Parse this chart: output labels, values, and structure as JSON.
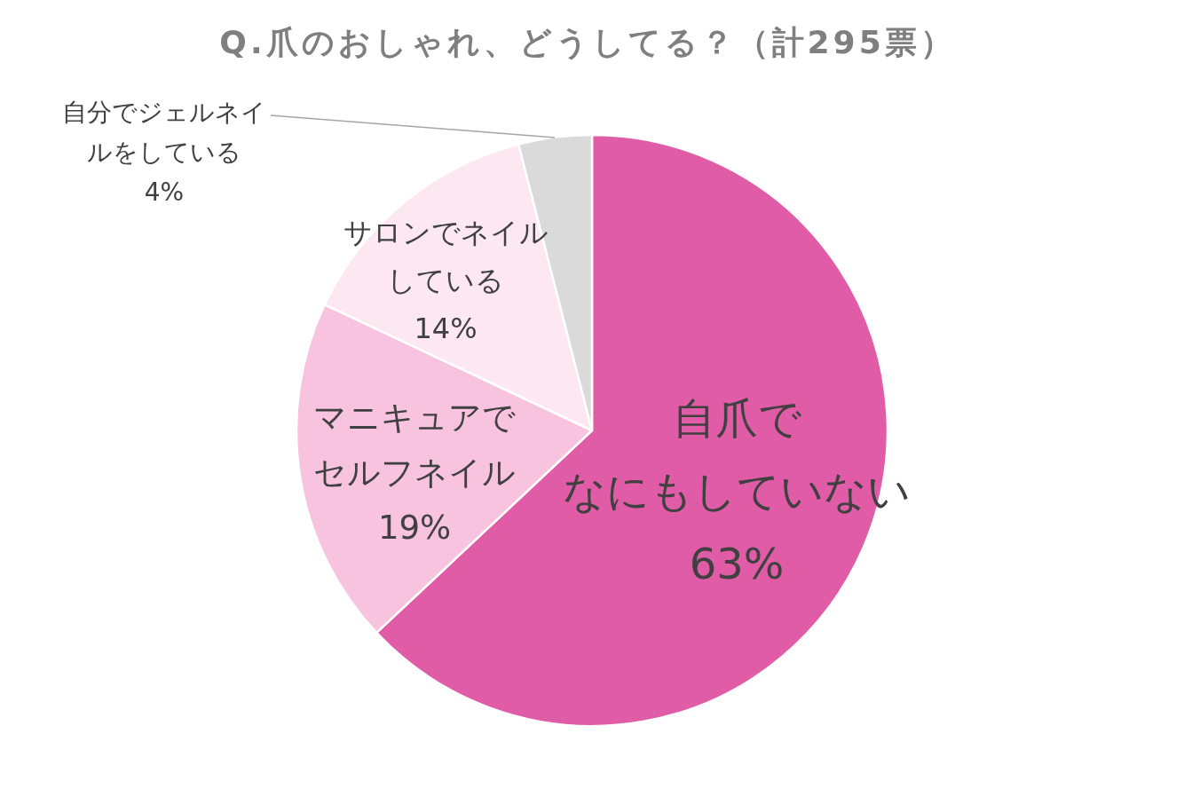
{
  "chart_data": {
    "type": "pie",
    "title": "Q.爪のおしゃれ、どうしてる？（計295票）",
    "categories": [
      "自爪でなにもしていない",
      "マニキュアでセルフネイル",
      "サロンでネイルしている",
      "自分でジェルネイルをしている"
    ],
    "values": [
      63,
      19,
      14,
      4
    ],
    "value_labels": [
      "63%",
      "19%",
      "14%",
      "4%"
    ],
    "colors": [
      "#e05ca6",
      "#f7c3de",
      "#fde8f2",
      "#dadada"
    ]
  }
}
